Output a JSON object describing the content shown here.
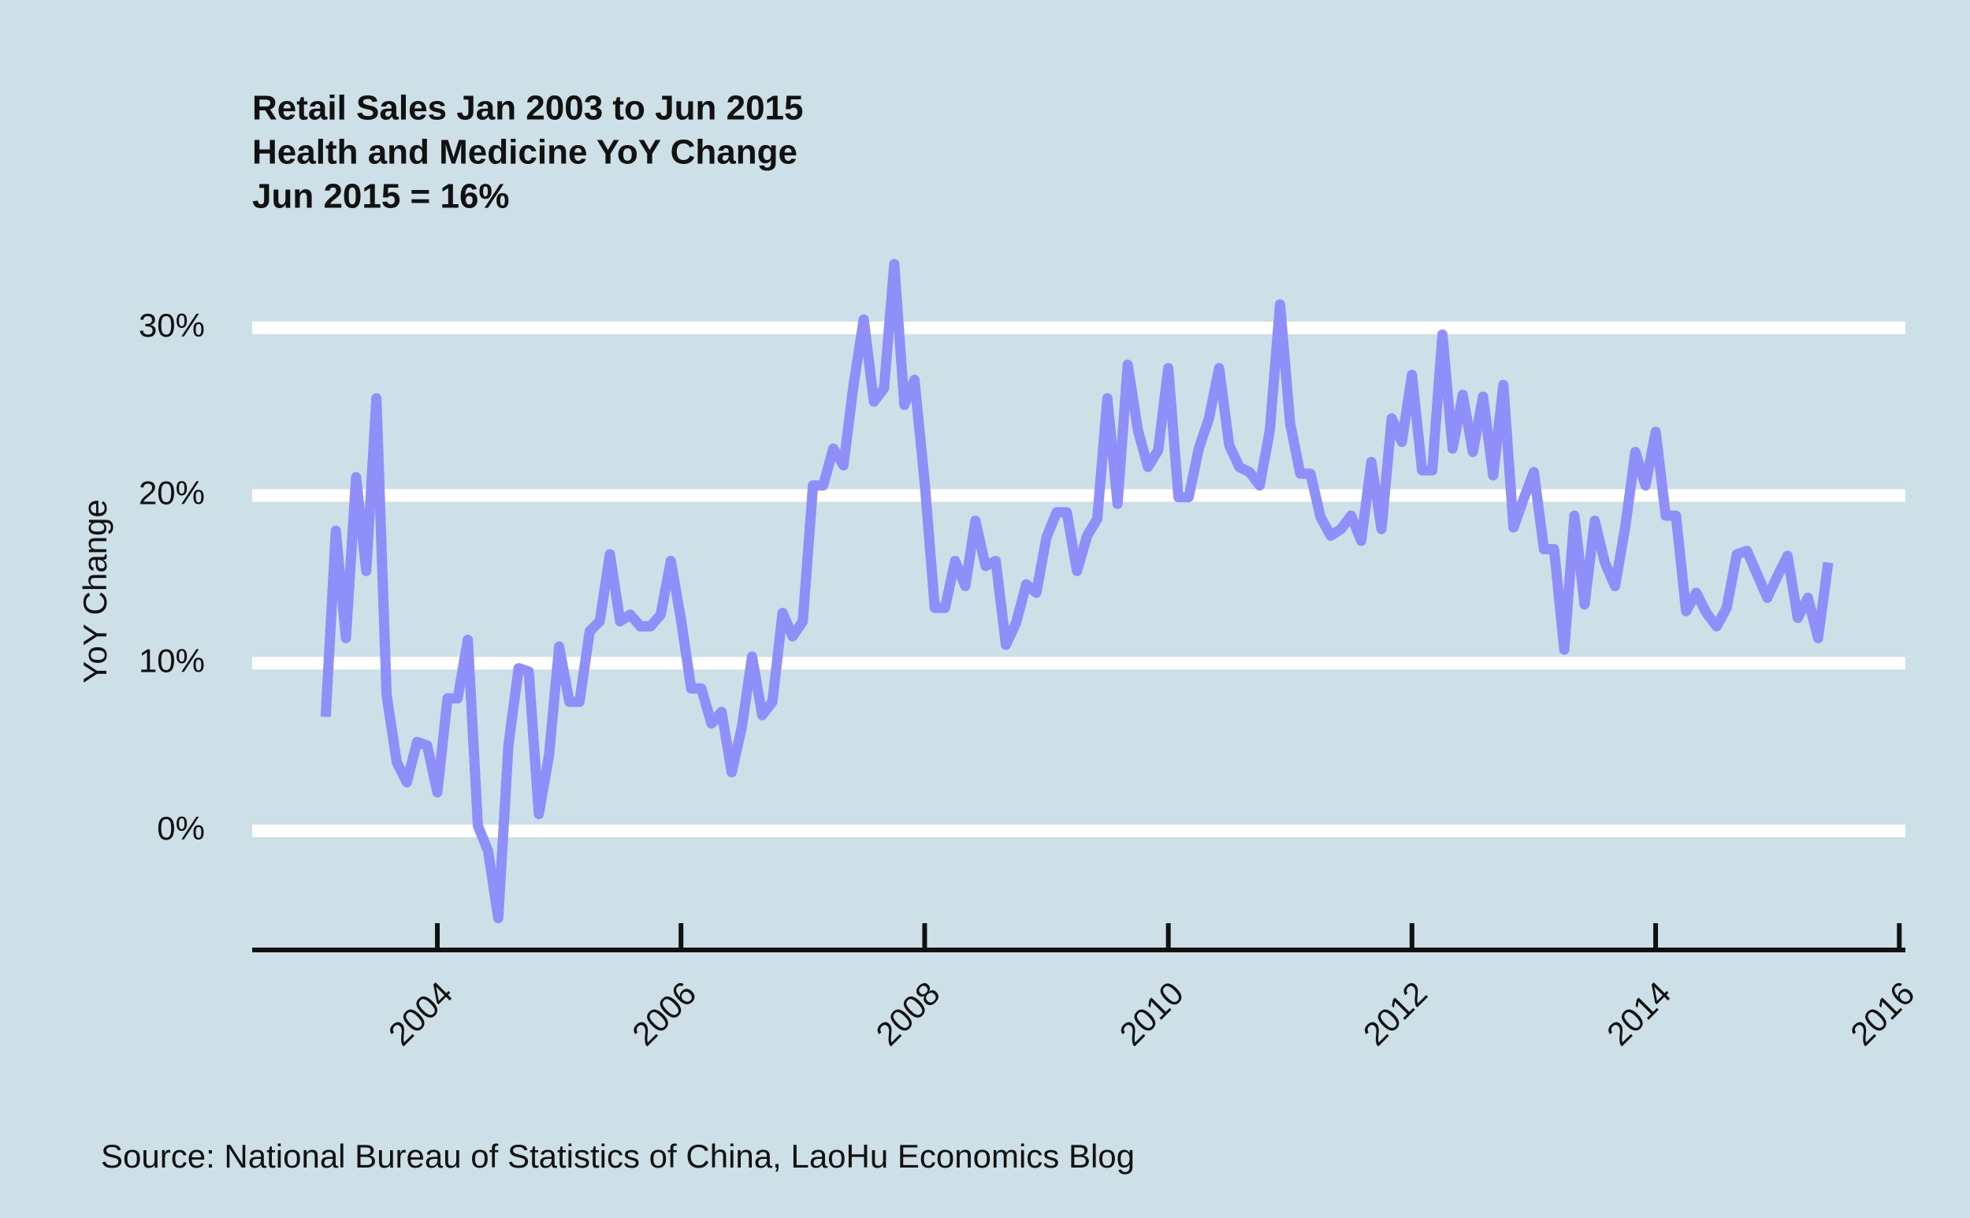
{
  "chart_data": {
    "type": "line",
    "title": [
      "Retail Sales Jan 2003 to Jun 2015",
      "Health and Medicine YoY Change",
      "Jun 2015 = 16%"
    ],
    "ylabel": "YoY Change",
    "caption": "Source: National Bureau of Statistics of China, LaoHu Economics Blog",
    "x": [
      "2003-02",
      "2003-03",
      "2003-04",
      "2003-05",
      "2003-06",
      "2003-07",
      "2003-08",
      "2003-09",
      "2003-10",
      "2003-11",
      "2003-12",
      "2004-01",
      "2004-02",
      "2004-03",
      "2004-04",
      "2004-05",
      "2004-06",
      "2004-07",
      "2004-08",
      "2004-09",
      "2004-10",
      "2004-11",
      "2004-12",
      "2005-01",
      "2005-02",
      "2005-03",
      "2005-04",
      "2005-05",
      "2005-06",
      "2005-07",
      "2005-08",
      "2005-09",
      "2005-10",
      "2005-11",
      "2005-12",
      "2006-01",
      "2006-02",
      "2006-03",
      "2006-04",
      "2006-05",
      "2006-06",
      "2006-07",
      "2006-08",
      "2006-09",
      "2006-10",
      "2006-11",
      "2006-12",
      "2007-01",
      "2007-02",
      "2007-03",
      "2007-04",
      "2007-05",
      "2007-06",
      "2007-07",
      "2007-08",
      "2007-09",
      "2007-10",
      "2007-11",
      "2007-12",
      "2008-01",
      "2008-02",
      "2008-03",
      "2008-04",
      "2008-05",
      "2008-06",
      "2008-07",
      "2008-08",
      "2008-09",
      "2008-10",
      "2008-11",
      "2008-12",
      "2009-01",
      "2009-02",
      "2009-03",
      "2009-04",
      "2009-05",
      "2009-06",
      "2009-07",
      "2009-08",
      "2009-09",
      "2009-10",
      "2009-11",
      "2009-12",
      "2010-01",
      "2010-02",
      "2010-03",
      "2010-04",
      "2010-05",
      "2010-06",
      "2010-07",
      "2010-08",
      "2010-09",
      "2010-10",
      "2010-11",
      "2010-12",
      "2011-01",
      "2011-02",
      "2011-03",
      "2011-04",
      "2011-05",
      "2011-06",
      "2011-07",
      "2011-08",
      "2011-09",
      "2011-10",
      "2011-11",
      "2011-12",
      "2012-01",
      "2012-02",
      "2012-03",
      "2012-04",
      "2012-05",
      "2012-06",
      "2012-07",
      "2012-08",
      "2012-09",
      "2012-10",
      "2012-11",
      "2012-12",
      "2013-01",
      "2013-02",
      "2013-03",
      "2013-04",
      "2013-05",
      "2013-06",
      "2013-07",
      "2013-08",
      "2013-09",
      "2013-10",
      "2013-11",
      "2013-12",
      "2014-01",
      "2014-02",
      "2014-03",
      "2014-04",
      "2014-05",
      "2014-06",
      "2014-07",
      "2014-08",
      "2014-09",
      "2014-10",
      "2014-11",
      "2014-12",
      "2015-01",
      "2015-02",
      "2015-03",
      "2015-04",
      "2015-05",
      "2015-06"
    ],
    "series": [
      {
        "color": "#8f8ffa",
        "values": [
          6.8,
          17.9,
          11.5,
          21.1,
          15.5,
          25.8,
          8.1,
          4.1,
          2.9,
          5.3,
          5.1,
          2.3,
          7.9,
          7.9,
          11.4,
          0.3,
          -1.2,
          -5.2,
          5.1,
          9.7,
          9.5,
          1.0,
          4.5,
          11.0,
          7.7,
          7.7,
          11.9,
          12.5,
          16.5,
          12.5,
          12.9,
          12.2,
          12.2,
          12.9,
          16.1,
          12.6,
          8.5,
          8.5,
          6.4,
          7.1,
          3.5,
          6.2,
          10.4,
          6.9,
          7.7,
          13.0,
          11.6,
          12.5,
          20.6,
          20.6,
          22.8,
          21.8,
          26.6,
          30.5,
          25.6,
          26.4,
          33.8,
          25.4,
          26.9,
          20.8,
          13.3,
          13.3,
          16.1,
          14.6,
          18.5,
          15.8,
          16.1,
          11.1,
          12.4,
          14.7,
          14.2,
          17.5,
          19.0,
          19.0,
          15.5,
          17.6,
          18.6,
          25.8,
          19.5,
          27.8,
          23.9,
          21.7,
          22.7,
          27.6,
          19.9,
          19.9,
          22.8,
          24.6,
          27.6,
          23.0,
          21.7,
          21.4,
          20.6,
          23.9,
          31.4,
          24.3,
          21.3,
          21.3,
          18.7,
          17.6,
          18.0,
          18.8,
          17.3,
          22.0,
          18.0,
          24.6,
          23.2,
          27.2,
          21.5,
          21.5,
          29.6,
          22.8,
          26.0,
          22.6,
          25.9,
          21.2,
          26.6,
          18.1,
          19.8,
          21.4,
          16.8,
          16.8,
          10.8,
          18.8,
          13.5,
          18.5,
          16.0,
          14.6,
          18.1,
          22.6,
          20.6,
          23.8,
          18.8,
          18.8,
          13.1,
          14.2,
          13.0,
          12.2,
          13.3,
          16.5,
          16.7,
          15.3,
          13.9,
          15.2,
          16.4,
          12.7,
          13.9,
          11.5,
          16.0
        ]
      }
    ],
    "xlim": [
      2002.48,
      2016.05
    ],
    "xticks": [
      2004,
      2006,
      2008,
      2010,
      2012,
      2014,
      2016
    ],
    "ylim": [
      -7.1,
      34.6
    ],
    "yticks": [
      {
        "value": 0,
        "label": "0%"
      },
      {
        "value": 10,
        "label": "10%"
      },
      {
        "value": 20,
        "label": "20%"
      },
      {
        "value": 30,
        "label": "30%"
      }
    ],
    "grid": true
  }
}
